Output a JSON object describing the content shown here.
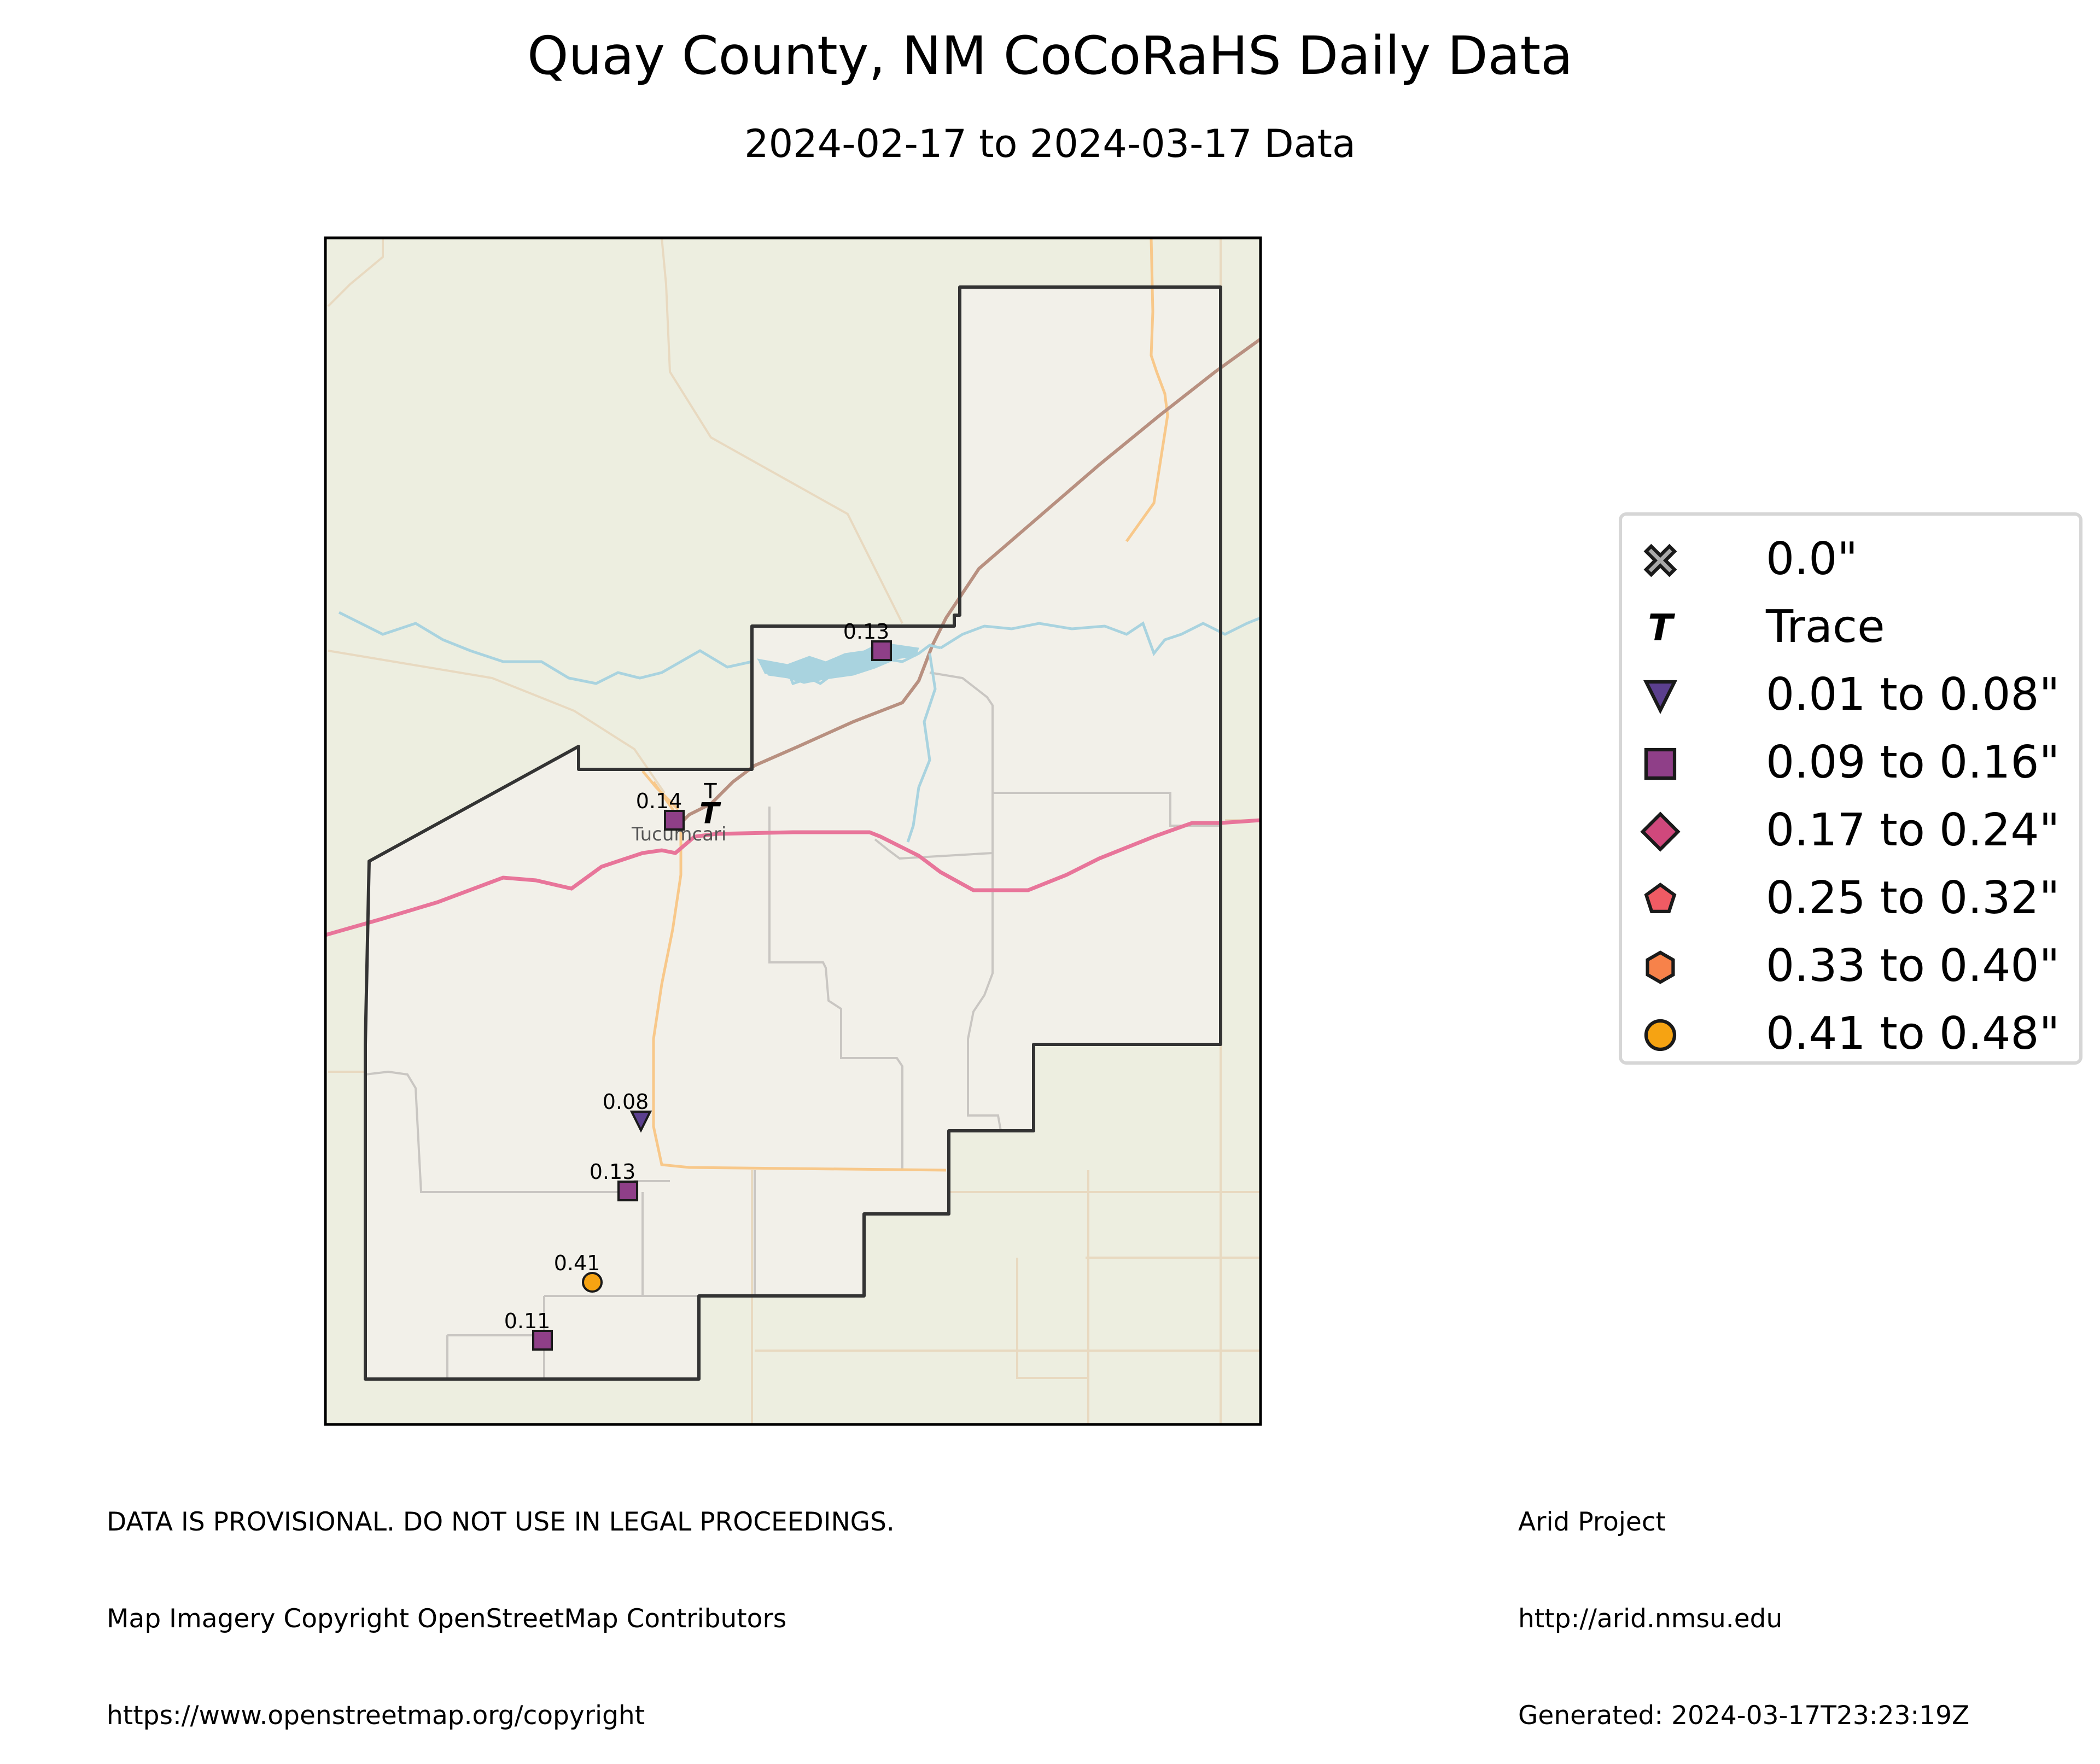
{
  "title": "Quay County, NM CoCoRaHS Daily Data",
  "subtitle": "2024-02-17 to 2024-03-17 Data",
  "map": {
    "town": "Tucumcari",
    "colors": {
      "background": "#edeee0",
      "county_fill": "#f2f0e9",
      "interstate": "#e8759a",
      "railroad": "#b89080",
      "highway": "#f8c88a",
      "water": "#a9d3df",
      "minor_road": "#c9c6c2",
      "county_border": "#333333"
    },
    "stations": [
      {
        "label": "0.13",
        "category": "0.09 to 0.16\"",
        "symbol": "square-icon",
        "color": "#8f3f88"
      },
      {
        "label": "0.14",
        "category": "0.09 to 0.16\"",
        "symbol": "square-icon",
        "color": "#8f3f88"
      },
      {
        "label": "T",
        "category": "Trace",
        "symbol": "trace-icon",
        "color": "#000000"
      },
      {
        "label": "0.08",
        "category": "0.01 to 0.08\"",
        "symbol": "triangle-down-icon",
        "color": "#5b3f8e"
      },
      {
        "label": "0.13",
        "category": "0.09 to 0.16\"",
        "symbol": "square-icon",
        "color": "#8f3f88"
      },
      {
        "label": "0.41",
        "category": "0.41 to 0.48\"",
        "symbol": "circle-icon",
        "color": "#f6a312"
      },
      {
        "label": "0.11",
        "category": "0.09 to 0.16\"",
        "symbol": "square-icon",
        "color": "#8f3f88"
      }
    ]
  },
  "legend": {
    "items": [
      {
        "label": "0.0\"",
        "symbol": "x-icon",
        "color": "#a9a9a9"
      },
      {
        "label": "Trace",
        "symbol": "trace-icon",
        "color": "#000000"
      },
      {
        "label": "0.01 to 0.08\"",
        "symbol": "triangle-down-icon",
        "color": "#5b3f8e"
      },
      {
        "label": "0.09 to 0.16\"",
        "symbol": "square-icon",
        "color": "#8f3f88"
      },
      {
        "label": "0.17 to 0.24\"",
        "symbol": "diamond-icon",
        "color": "#d0487c"
      },
      {
        "label": "0.25 to 0.32\"",
        "symbol": "pentagon-icon",
        "color": "#f05b64"
      },
      {
        "label": "0.33 to 0.40\"",
        "symbol": "hexagon-icon",
        "color": "#f7824a"
      },
      {
        "label": "0.41 to 0.48\"",
        "symbol": "circle-icon",
        "color": "#f6a312"
      }
    ]
  },
  "footer": {
    "left": [
      "DATA IS PROVISIONAL. DO NOT USE IN LEGAL PROCEEDINGS.",
      "Map Imagery Copyright OpenStreetMap Contributors",
      "https://www.openstreetmap.org/copyright"
    ],
    "right": [
      "Arid Project",
      "http://arid.nmsu.edu",
      "Generated: 2024-03-17T23:23:19Z"
    ]
  }
}
